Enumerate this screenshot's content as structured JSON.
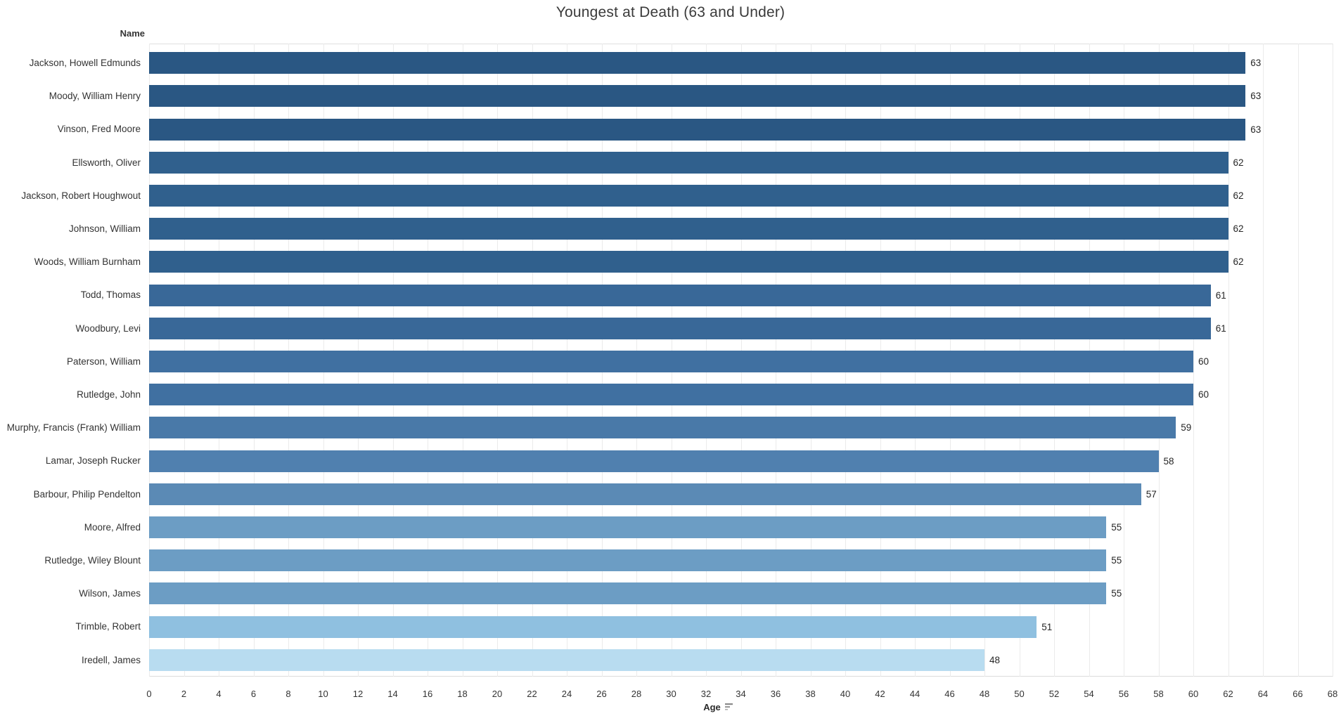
{
  "chart": {
    "title": "Youngest at Death (63 and Under)",
    "row_header": "Name",
    "xlabel": "Age"
  },
  "chart_data": {
    "type": "bar",
    "orientation": "horizontal",
    "title": "Youngest at Death (63 and Under)",
    "xlabel": "Age",
    "ylabel": "Name",
    "xlim": [
      0,
      68
    ],
    "ticks": [
      0,
      2,
      4,
      6,
      8,
      10,
      12,
      14,
      16,
      18,
      20,
      22,
      24,
      26,
      28,
      30,
      32,
      34,
      36,
      38,
      40,
      42,
      44,
      46,
      48,
      50,
      52,
      54,
      56,
      58,
      60,
      62,
      64,
      66,
      68
    ],
    "grid": true,
    "legend": "none",
    "sort": "descending by Age",
    "categories": [
      "Jackson, Howell Edmunds",
      "Moody, William Henry",
      "Vinson, Fred Moore",
      "Ellsworth, Oliver",
      "Jackson, Robert Houghwout",
      "Johnson, William",
      "Woods, William Burnham",
      "Todd, Thomas",
      "Woodbury, Levi",
      "Paterson, William",
      "Rutledge, John",
      "Murphy, Francis (Frank) William",
      "Lamar, Joseph Rucker",
      "Barbour, Philip Pendelton",
      "Moore, Alfred",
      "Rutledge, Wiley Blount",
      "Wilson, James",
      "Trimble, Robert",
      "Iredell, James"
    ],
    "values": [
      63,
      63,
      63,
      62,
      62,
      62,
      62,
      61,
      61,
      60,
      60,
      59,
      58,
      57,
      55,
      55,
      55,
      51,
      48
    ],
    "value_labels": [
      "63",
      "63",
      "63",
      "62",
      "62",
      "62",
      "62",
      "61",
      "61",
      "60",
      "60",
      "59",
      "58",
      "57",
      "55",
      "55",
      "55",
      "51",
      "48"
    ],
    "bar_colors": [
      "#2a5783",
      "#2a5783",
      "#2a5783",
      "#30608d",
      "#30608d",
      "#30608d",
      "#30608d",
      "#396898",
      "#396898",
      "#4070a1",
      "#4070a1",
      "#4979a8",
      "#5080af",
      "#5b8ab5",
      "#6c9dc4",
      "#6c9dc4",
      "#6c9dc4",
      "#8fc0e0",
      "#b8dcf0"
    ],
    "gridline_color": "#ebebeb",
    "text_color": "#333333"
  }
}
